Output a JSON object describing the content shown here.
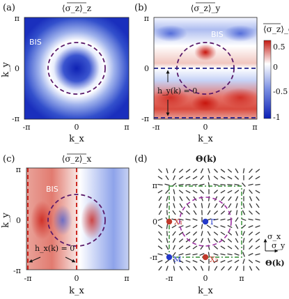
{
  "panels": {
    "a": {
      "letter": "(a)",
      "title": "⟨σ_z⟩_z",
      "bis": "BIS",
      "xlabel": "k_x",
      "ylabel": "k_y",
      "xticks": [
        "-π",
        "0",
        "π"
      ],
      "yticks": [
        "π",
        "0",
        "-π"
      ]
    },
    "b": {
      "letter": "(b)",
      "title": "⟨σ_z⟩_y",
      "bis": "BIS",
      "xlabel": "k_x",
      "xticks": [
        "-π",
        "0",
        "π"
      ],
      "yticks": [
        "π",
        "0",
        "-π"
      ],
      "annotation": "h_y(k) = 0"
    },
    "c": {
      "letter": "(c)",
      "title": "⟨σ_z⟩_x",
      "bis": "BIS",
      "xlabel": "k_x",
      "ylabel": "k_y",
      "xticks": [
        "-π",
        "0",
        "π"
      ],
      "yticks": [
        "π",
        "0",
        "-π"
      ],
      "annotation": "h_x(k) = 0"
    },
    "d": {
      "letter": "(d)",
      "title": "Θ(k)",
      "xlabel": "k_x",
      "xticks": [
        "-π",
        "0",
        "π"
      ],
      "yticks": [
        "π",
        "0",
        "-π"
      ],
      "points": [
        {
          "label": "X₁",
          "color": "#c0392b"
        },
        {
          "label": "Γ",
          "color": "#2338c9"
        },
        {
          "label": "M",
          "color": "#2338c9"
        },
        {
          "label": "X₂",
          "color": "#c0392b"
        }
      ],
      "axes_legend": {
        "x": "σ_y",
        "y": "σ_x",
        "label": "Θ(k)"
      }
    }
  },
  "colorbar": {
    "label": "⟨σ_z⟩_α",
    "ticks": [
      "0.5",
      "0",
      "-0.5",
      "-1"
    ],
    "range": [
      -1,
      0.6
    ],
    "colors": {
      "high": "#c41a12",
      "mid": "#ffffff",
      "low": "#0b1fb6"
    }
  }
}
